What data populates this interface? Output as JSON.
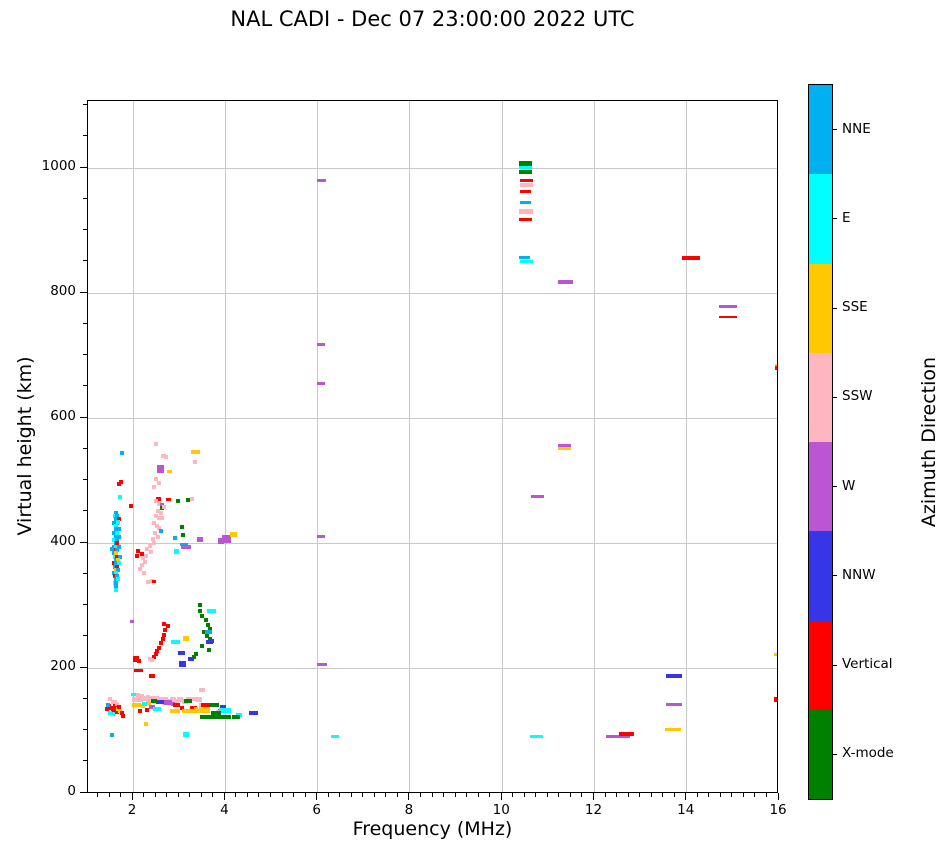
{
  "title": "NAL CADI - Dec 07 23:00:00 2022 UTC",
  "xlabel": "Frequency (MHz)",
  "ylabel": "Virtual height (km)",
  "colorbar": {
    "label": "Azimuth Direction",
    "categories": [
      {
        "key": "N",
        "label": "NNE",
        "color": "#00b0f0"
      },
      {
        "key": "E",
        "label": "E",
        "color": "#00ffff"
      },
      {
        "key": "S",
        "label": "SSE",
        "color": "#ffc800"
      },
      {
        "key": "P",
        "label": "SSW",
        "color": "#ffb6c1"
      },
      {
        "key": "W",
        "label": "W",
        "color": "#ba55d3"
      },
      {
        "key": "B",
        "label": "NNW",
        "color": "#3636e8"
      },
      {
        "key": "V",
        "label": "Vertical",
        "color": "#ff0000"
      },
      {
        "key": "X",
        "label": "X-mode",
        "color": "#008000"
      }
    ]
  },
  "axes": {
    "x_major_ticks": [
      2,
      4,
      6,
      8,
      10,
      12,
      14,
      16
    ],
    "x_minor_step": 0.25,
    "y_major_ticks": [
      0,
      200,
      400,
      600,
      800,
      1000
    ],
    "y_minor_step": 50,
    "xlim": [
      1.02,
      16.0
    ],
    "ylim": [
      0,
      1107
    ],
    "grid": true,
    "grid_color": "#c9c9c9"
  },
  "chart_data": {
    "type": "scatter",
    "x_unit": "MHz",
    "y_unit": "km",
    "legend_position": "right-colorbar",
    "color_key": {
      "N": "NNE",
      "E": "E",
      "S": "SSE",
      "P": "SSW",
      "W": "W",
      "B": "NNW",
      "V": "Vertical",
      "X": "X-mode"
    },
    "points": [
      [
        1.62,
        448,
        "N"
      ],
      [
        1.6,
        444,
        "E"
      ],
      [
        1.66,
        444,
        "N"
      ],
      [
        1.62,
        438,
        "N"
      ],
      [
        1.7,
        438,
        "V"
      ],
      [
        1.58,
        432,
        "N"
      ],
      [
        1.66,
        432,
        "N"
      ],
      [
        1.62,
        427,
        "E"
      ],
      [
        1.62,
        422,
        "N"
      ],
      [
        1.7,
        422,
        "N"
      ],
      [
        1.58,
        416,
        "N"
      ],
      [
        1.66,
        416,
        "E"
      ],
      [
        1.62,
        410,
        "N"
      ],
      [
        1.7,
        410,
        "N"
      ],
      [
        1.58,
        405,
        "E"
      ],
      [
        1.66,
        405,
        "N"
      ],
      [
        1.62,
        400,
        "N"
      ],
      [
        1.66,
        400,
        "V"
      ],
      [
        1.58,
        394,
        "N"
      ],
      [
        1.62,
        394,
        "E"
      ],
      [
        1.7,
        394,
        "N"
      ],
      [
        1.62,
        389,
        "V"
      ],
      [
        1.66,
        389,
        "N"
      ],
      [
        1.58,
        384,
        "N"
      ],
      [
        1.64,
        384,
        "S"
      ],
      [
        1.6,
        378,
        "E"
      ],
      [
        1.66,
        378,
        "V"
      ],
      [
        1.72,
        378,
        "N"
      ],
      [
        1.62,
        373,
        "N"
      ],
      [
        1.68,
        373,
        "S"
      ],
      [
        1.58,
        368,
        "V"
      ],
      [
        1.64,
        368,
        "N"
      ],
      [
        1.7,
        368,
        "E"
      ],
      [
        1.6,
        362,
        "N"
      ],
      [
        1.66,
        362,
        "V"
      ],
      [
        1.62,
        357,
        "S"
      ],
      [
        1.68,
        357,
        "N"
      ],
      [
        1.58,
        352,
        "N"
      ],
      [
        1.64,
        352,
        "E"
      ],
      [
        1.6,
        347,
        "V"
      ],
      [
        1.66,
        347,
        "N"
      ],
      [
        1.62,
        342,
        "N"
      ],
      [
        1.68,
        342,
        "E"
      ],
      [
        1.6,
        336,
        "S"
      ],
      [
        1.64,
        336,
        "N"
      ],
      [
        1.62,
        330,
        "N"
      ],
      [
        1.64,
        325,
        "E"
      ],
      [
        1.55,
        390,
        "N"
      ],
      [
        1.76,
        544,
        "N"
      ],
      [
        1.74,
        498,
        "V"
      ],
      [
        1.7,
        494,
        "V"
      ],
      [
        1.72,
        474,
        "E"
      ],
      [
        1.67,
        434,
        "E"
      ],
      [
        1.96,
        459,
        "V"
      ],
      [
        1.98,
        274,
        "W",
        4,
        3
      ],
      [
        2.5,
        558,
        "P"
      ],
      [
        2.65,
        540,
        "P",
        5,
        4
      ],
      [
        2.72,
        538,
        "P"
      ],
      [
        2.6,
        518,
        "W",
        7,
        8
      ],
      [
        2.78,
        514,
        "S",
        5,
        3
      ],
      [
        2.5,
        502,
        "P"
      ],
      [
        2.56,
        496,
        "P"
      ],
      [
        2.46,
        490,
        "P"
      ],
      [
        2.55,
        470,
        "V",
        5,
        4
      ],
      [
        2.5,
        468,
        "P"
      ],
      [
        2.56,
        462,
        "P"
      ],
      [
        2.62,
        461,
        "W"
      ],
      [
        2.62,
        456,
        "X"
      ],
      [
        2.67,
        458,
        "P"
      ],
      [
        2.54,
        452,
        "P"
      ],
      [
        2.6,
        448,
        "P"
      ],
      [
        2.5,
        444,
        "P"
      ],
      [
        2.56,
        440,
        "P"
      ],
      [
        2.63,
        440,
        "P"
      ],
      [
        2.46,
        432,
        "P"
      ],
      [
        2.52,
        428,
        "P"
      ],
      [
        2.57,
        424,
        "P"
      ],
      [
        2.6,
        419,
        "N"
      ],
      [
        2.48,
        416,
        "P"
      ],
      [
        2.53,
        410,
        "P"
      ],
      [
        2.43,
        406,
        "P"
      ],
      [
        2.46,
        400,
        "P"
      ],
      [
        2.36,
        396,
        "P"
      ],
      [
        2.31,
        390,
        "P"
      ],
      [
        2.39,
        385,
        "P"
      ],
      [
        2.29,
        380,
        "P"
      ],
      [
        2.21,
        376,
        "P"
      ],
      [
        2.26,
        370,
        "P"
      ],
      [
        2.19,
        365,
        "P"
      ],
      [
        2.16,
        358,
        "P"
      ],
      [
        2.23,
        352,
        "P"
      ],
      [
        2.4,
        339,
        "P"
      ],
      [
        2.33,
        337,
        "P"
      ],
      [
        2.46,
        338,
        "V",
        4,
        3
      ],
      [
        2.11,
        387,
        "V"
      ],
      [
        2.2,
        383,
        "V"
      ],
      [
        2.08,
        379,
        "V"
      ],
      [
        2.97,
        467,
        "X"
      ],
      [
        3.2,
        469,
        "X"
      ],
      [
        3.28,
        470,
        "P"
      ],
      [
        2.76,
        469,
        "V",
        5,
        3
      ],
      [
        3.34,
        530,
        "P"
      ],
      [
        3.35,
        545,
        "S",
        9,
        4
      ],
      [
        2.9,
        408,
        "N"
      ],
      [
        3.06,
        426,
        "X"
      ],
      [
        3.08,
        413,
        "X"
      ],
      [
        2.93,
        387,
        "E",
        5,
        5
      ],
      [
        3.1,
        398,
        "N",
        8,
        3
      ],
      [
        3.15,
        394,
        "W",
        10,
        4
      ],
      [
        3.45,
        405,
        "W",
        6,
        5
      ],
      [
        3.9,
        404,
        "W",
        6,
        6
      ],
      [
        4.03,
        407,
        "W",
        9,
        8
      ],
      [
        4.18,
        413,
        "S",
        7,
        5
      ],
      [
        2.68,
        271,
        "V"
      ],
      [
        2.75,
        268,
        "V"
      ],
      [
        2.7,
        261,
        "V"
      ],
      [
        2.68,
        253,
        "V"
      ],
      [
        2.64,
        247,
        "V"
      ],
      [
        2.6,
        240,
        "V"
      ],
      [
        2.56,
        232,
        "V"
      ],
      [
        2.52,
        227,
        "V"
      ],
      [
        2.49,
        222,
        "V"
      ],
      [
        2.45,
        218,
        "V"
      ],
      [
        2.36,
        215,
        "P"
      ],
      [
        2.42,
        213,
        "P"
      ],
      [
        2.07,
        215,
        "V",
        6,
        6
      ],
      [
        2.13,
        211,
        "V"
      ],
      [
        2.12,
        196,
        "V",
        9,
        3
      ],
      [
        2.42,
        187,
        "V",
        6,
        4
      ],
      [
        3.45,
        301,
        "X"
      ],
      [
        3.46,
        291,
        "X"
      ],
      [
        3.49,
        283,
        "X"
      ],
      [
        3.58,
        277,
        "X"
      ],
      [
        3.62,
        269,
        "X"
      ],
      [
        3.66,
        262,
        "X"
      ],
      [
        3.53,
        257,
        "X"
      ],
      [
        3.6,
        251,
        "X"
      ],
      [
        3.66,
        246,
        "X"
      ],
      [
        3.71,
        243,
        "X"
      ],
      [
        3.5,
        236,
        "X"
      ],
      [
        3.64,
        229,
        "X"
      ],
      [
        3.36,
        222,
        "X"
      ],
      [
        3.31,
        217,
        "X"
      ],
      [
        3.7,
        292,
        "E",
        9,
        4
      ],
      [
        2.92,
        241,
        "E",
        9,
        4
      ],
      [
        3.14,
        248,
        "S",
        6,
        5
      ],
      [
        3.05,
        224,
        "B",
        7,
        4
      ],
      [
        3.25,
        214,
        "B",
        6,
        4
      ],
      [
        3.06,
        206,
        "B",
        7,
        6
      ],
      [
        3.63,
        258,
        "N",
        7,
        4
      ],
      [
        3.66,
        241,
        "B",
        7,
        4
      ],
      [
        6.1,
        206,
        "W",
        10,
        3
      ],
      [
        1.5,
        150,
        "P"
      ],
      [
        1.56,
        146,
        "P"
      ],
      [
        1.48,
        140,
        "V"
      ],
      [
        1.52,
        136,
        "V"
      ],
      [
        1.56,
        133,
        "V"
      ],
      [
        1.6,
        140,
        "V"
      ],
      [
        1.63,
        136,
        "V"
      ],
      [
        1.65,
        130,
        "V"
      ],
      [
        1.51,
        128,
        "E"
      ],
      [
        1.56,
        126,
        "E"
      ],
      [
        1.45,
        141,
        "N"
      ],
      [
        1.68,
        134,
        "S"
      ],
      [
        1.72,
        131,
        "S"
      ],
      [
        1.76,
        128,
        "V"
      ],
      [
        1.6,
        146,
        "P"
      ],
      [
        1.66,
        143,
        "P"
      ],
      [
        1.79,
        123,
        "V"
      ],
      [
        1.7,
        138,
        "V"
      ],
      [
        1.43,
        134,
        "V"
      ],
      [
        2.02,
        158,
        "E",
        7,
        3
      ],
      [
        2.1,
        157,
        "P"
      ],
      [
        2.2,
        156,
        "P"
      ],
      [
        2.05,
        150,
        "P",
        6,
        5
      ],
      [
        2.15,
        149,
        "P",
        6,
        5
      ],
      [
        2.25,
        151,
        "P",
        6,
        5
      ],
      [
        2.32,
        153,
        "P"
      ],
      [
        2.36,
        148,
        "P",
        6,
        5
      ],
      [
        2.42,
        151,
        "P",
        6,
        5
      ],
      [
        2.5,
        152,
        "P",
        6,
        5
      ],
      [
        2.46,
        146,
        "P"
      ],
      [
        2.56,
        149,
        "P",
        6,
        5
      ],
      [
        2.62,
        151,
        "P"
      ],
      [
        2.7,
        149,
        "P",
        6,
        5
      ],
      [
        2.66,
        144,
        "P"
      ],
      [
        2.76,
        147,
        "P",
        6,
        5
      ],
      [
        2.86,
        149,
        "P",
        6,
        5
      ],
      [
        2.92,
        144,
        "P"
      ],
      [
        2.96,
        147,
        "P"
      ],
      [
        3.02,
        149,
        "P",
        6,
        5
      ],
      [
        3.12,
        147,
        "P",
        6,
        5
      ],
      [
        3.22,
        149,
        "P",
        6,
        5
      ],
      [
        3.32,
        151,
        "P"
      ],
      [
        3.42,
        149,
        "P",
        6,
        5
      ],
      [
        3.5,
        165,
        "P",
        6,
        4
      ],
      [
        2.08,
        141,
        "S",
        9,
        4
      ],
      [
        2.21,
        140,
        "S"
      ],
      [
        2.45,
        147,
        "X",
        6,
        4
      ],
      [
        2.53,
        146,
        "X"
      ],
      [
        2.61,
        145,
        "B",
        6,
        4
      ],
      [
        2.76,
        145,
        "W",
        8,
        5
      ],
      [
        2.86,
        142,
        "W"
      ],
      [
        2.95,
        141,
        "V",
        7,
        4
      ],
      [
        3.06,
        136,
        "V"
      ],
      [
        3.18,
        147,
        "X",
        8,
        4
      ],
      [
        2.31,
        133,
        "V"
      ],
      [
        2.16,
        132,
        "V"
      ],
      [
        3.3,
        131,
        "S",
        22,
        4
      ],
      [
        2.91,
        132,
        "S",
        10,
        4
      ],
      [
        3.31,
        137,
        "V",
        7,
        3
      ],
      [
        3.37,
        134,
        "S"
      ],
      [
        2.41,
        137,
        "W",
        6,
        4
      ],
      [
        2.51,
        135,
        "E",
        8,
        4
      ],
      [
        2.33,
        144,
        "S",
        5,
        4
      ],
      [
        2.25,
        143,
        "E",
        5,
        4
      ],
      [
        3.47,
        141,
        "P"
      ],
      [
        3.58,
        141,
        "V",
        9,
        4
      ],
      [
        3.77,
        141,
        "X",
        9,
        4
      ],
      [
        3.95,
        139,
        "B",
        6,
        3
      ],
      [
        3.55,
        133,
        "S",
        11,
        6
      ],
      [
        3.9,
        131,
        "W",
        6,
        4
      ],
      [
        3.83,
        130,
        "P"
      ],
      [
        4.0,
        132,
        "E",
        12,
        5
      ],
      [
        4.3,
        125,
        "E",
        6,
        4
      ],
      [
        3.62,
        122,
        "X",
        16,
        4
      ],
      [
        3.95,
        122,
        "X",
        16,
        4
      ],
      [
        4.22,
        122,
        "X",
        8,
        4
      ],
      [
        3.8,
        128,
        "X",
        10,
        4
      ],
      [
        4.62,
        128,
        "B",
        9,
        4
      ],
      [
        3.15,
        93,
        "E",
        6,
        5
      ],
      [
        2.27,
        111,
        "S"
      ],
      [
        1.55,
        93,
        "N"
      ],
      [
        6.38,
        90,
        "E",
        8,
        3
      ],
      [
        10.75,
        90,
        "E",
        13,
        3
      ],
      [
        6.08,
        980,
        "W",
        9,
        3
      ],
      [
        6.08,
        717,
        "W",
        8,
        3
      ],
      [
        6.08,
        655,
        "W",
        8,
        3
      ],
      [
        6.08,
        410,
        "W",
        8,
        3
      ],
      [
        10.5,
        1008,
        "X",
        13,
        5
      ],
      [
        10.5,
        1001,
        "E",
        13,
        3
      ],
      [
        10.5,
        994,
        "X",
        13,
        4
      ],
      [
        10.52,
        980,
        "V",
        13,
        3
      ],
      [
        10.52,
        973,
        "P",
        13,
        4
      ],
      [
        10.5,
        963,
        "V",
        11,
        3
      ],
      [
        10.5,
        945,
        "N",
        11,
        3
      ],
      [
        10.52,
        930,
        "P",
        14,
        5
      ],
      [
        10.5,
        917,
        "V",
        13,
        3
      ],
      [
        10.48,
        857,
        "N",
        11,
        3
      ],
      [
        10.52,
        850,
        "E",
        13,
        3
      ],
      [
        10.77,
        474,
        "W",
        13,
        3
      ],
      [
        11.37,
        817,
        "W",
        15,
        4
      ],
      [
        11.36,
        556,
        "W",
        13,
        3
      ],
      [
        11.36,
        551,
        "S",
        13,
        3
      ],
      [
        12.5,
        91,
        "W",
        24,
        3
      ],
      [
        12.7,
        95,
        "V",
        15,
        4
      ],
      [
        13.72,
        188,
        "B",
        16,
        4
      ],
      [
        13.72,
        141,
        "W",
        16,
        3
      ],
      [
        13.7,
        101,
        "S",
        16,
        3
      ],
      [
        14.1,
        856,
        "V",
        18,
        4
      ],
      [
        14.9,
        778,
        "W",
        18,
        3
      ],
      [
        14.9,
        762,
        "V",
        18,
        2
      ],
      [
        15.97,
        684,
        "S",
        6,
        3
      ],
      [
        15.97,
        680,
        "V",
        6,
        4
      ],
      [
        15.97,
        222,
        "S",
        7,
        3
      ],
      [
        15.97,
        150,
        "V",
        7,
        5
      ]
    ]
  }
}
